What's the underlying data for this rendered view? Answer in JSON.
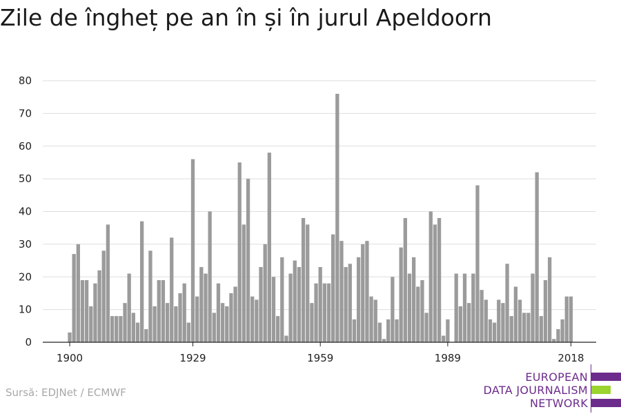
{
  "title": "Zile de îngheț pe an în și în jurul Apeldoorn",
  "source": "Sursă: EDJNet / ECMWF",
  "logo": {
    "lines": [
      "EUROPEAN",
      "DATA JOURNALISM",
      "NETWORK"
    ],
    "colors": {
      "purple": "#6c2c8c",
      "green": "#9bd32f"
    }
  },
  "colors": {
    "bar": "#9b9b9b",
    "grid": "#dddddd",
    "axis": "#222222"
  },
  "chart_data": {
    "type": "bar",
    "title": "Zile de îngheț pe an în și în jurul Apeldoorn",
    "xlabel": "",
    "ylabel": "",
    "ylim": [
      0,
      80
    ],
    "yticks": [
      0,
      10,
      20,
      30,
      40,
      50,
      60,
      70,
      80
    ],
    "xticks": [
      1900,
      1929,
      1959,
      1989,
      2018
    ],
    "grid": true,
    "x": [
      1900,
      1901,
      1902,
      1903,
      1904,
      1905,
      1906,
      1907,
      1908,
      1909,
      1910,
      1911,
      1912,
      1913,
      1914,
      1915,
      1916,
      1917,
      1918,
      1919,
      1920,
      1921,
      1922,
      1923,
      1924,
      1925,
      1926,
      1927,
      1928,
      1929,
      1930,
      1931,
      1932,
      1933,
      1934,
      1935,
      1936,
      1937,
      1938,
      1939,
      1940,
      1941,
      1942,
      1943,
      1944,
      1945,
      1946,
      1947,
      1948,
      1949,
      1950,
      1951,
      1952,
      1953,
      1954,
      1955,
      1956,
      1957,
      1958,
      1959,
      1960,
      1961,
      1962,
      1963,
      1964,
      1965,
      1966,
      1967,
      1968,
      1969,
      1970,
      1971,
      1972,
      1973,
      1974,
      1975,
      1976,
      1977,
      1978,
      1979,
      1980,
      1981,
      1982,
      1983,
      1984,
      1985,
      1986,
      1987,
      1988,
      1989,
      1990,
      1991,
      1992,
      1993,
      1994,
      1995,
      1996,
      1997,
      1998,
      1999,
      2000,
      2001,
      2002,
      2003,
      2004,
      2005,
      2006,
      2007,
      2008,
      2009,
      2010,
      2011,
      2012,
      2013,
      2014,
      2015,
      2016,
      2017,
      2018
    ],
    "values": [
      3,
      27,
      30,
      19,
      19,
      11,
      18,
      22,
      28,
      36,
      8,
      8,
      8,
      12,
      21,
      9,
      6,
      37,
      4,
      28,
      11,
      19,
      19,
      12,
      32,
      11,
      15,
      18,
      6,
      56,
      14,
      23,
      21,
      40,
      9,
      18,
      12,
      11,
      15,
      17,
      55,
      36,
      50,
      14,
      13,
      23,
      30,
      58,
      20,
      8,
      26,
      2,
      21,
      25,
      23,
      38,
      36,
      12,
      18,
      23,
      18,
      18,
      33,
      76,
      31,
      23,
      24,
      7,
      26,
      30,
      31,
      14,
      13,
      6,
      1,
      7,
      20,
      7,
      29,
      38,
      21,
      26,
      17,
      19,
      9,
      40,
      36,
      38,
      2,
      7,
      0,
      21,
      11,
      21,
      12,
      21,
      48,
      16,
      13,
      7,
      6,
      13,
      12,
      24,
      8,
      17,
      13,
      9,
      9,
      21,
      52,
      8,
      19,
      26,
      1,
      4,
      7,
      14,
      14
    ]
  }
}
